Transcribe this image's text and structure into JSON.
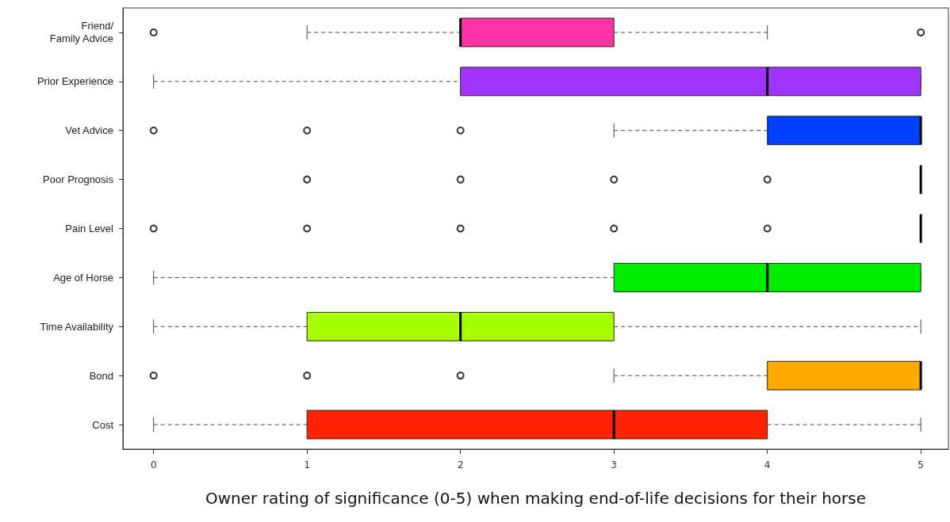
{
  "chart_data": {
    "type": "box",
    "orientation": "horizontal",
    "xlabel": "Owner rating of significance (0-5) when making end-of-life decisions for their horse",
    "categories": [
      "Friend/\nFamily Advice",
      "Prior Experience",
      "Vet Advice",
      "Poor Prognosis",
      "Pain Level",
      "Age of Horse",
      "Time Availability",
      "Bond",
      "Cost"
    ],
    "colors": [
      "#ff33a6",
      "#a033ff",
      "#0040ff",
      null,
      null,
      "#00ee00",
      "#a8ff00",
      "#ffaa00",
      "#ff2200"
    ],
    "boxes": [
      {
        "low": 1,
        "q1": 2,
        "median": 2,
        "q3": 3,
        "high": 4,
        "outliers": [
          0,
          5
        ]
      },
      {
        "low": 0,
        "q1": 2,
        "median": 4,
        "q3": 5,
        "high": 5
      },
      {
        "low": 3,
        "q1": 4,
        "median": 5,
        "q3": 5,
        "high": 5,
        "outliers": [
          0,
          1,
          2
        ]
      },
      {
        "low": 5,
        "q1": 5,
        "median": 5,
        "q3": 5,
        "high": 5,
        "outliers": [
          1,
          2,
          3,
          4
        ]
      },
      {
        "low": 5,
        "q1": 5,
        "median": 5,
        "q3": 5,
        "high": 5,
        "outliers": [
          0,
          1,
          2,
          3,
          4
        ]
      },
      {
        "low": 0,
        "q1": 3,
        "median": 4,
        "q3": 5,
        "high": 5
      },
      {
        "low": 0,
        "q1": 1,
        "median": 2,
        "q3": 3,
        "high": 5
      },
      {
        "low": 3,
        "q1": 4,
        "median": 5,
        "q3": 5,
        "high": 5,
        "outliers": [
          0,
          1,
          2
        ]
      },
      {
        "low": 0,
        "q1": 1,
        "median": 3,
        "q3": 4,
        "high": 5
      }
    ],
    "xlim": [
      -0.2,
      5.18
    ],
    "xticks": [
      0,
      1,
      2,
      3,
      4,
      5
    ],
    "grid": false,
    "marker": "circle"
  }
}
